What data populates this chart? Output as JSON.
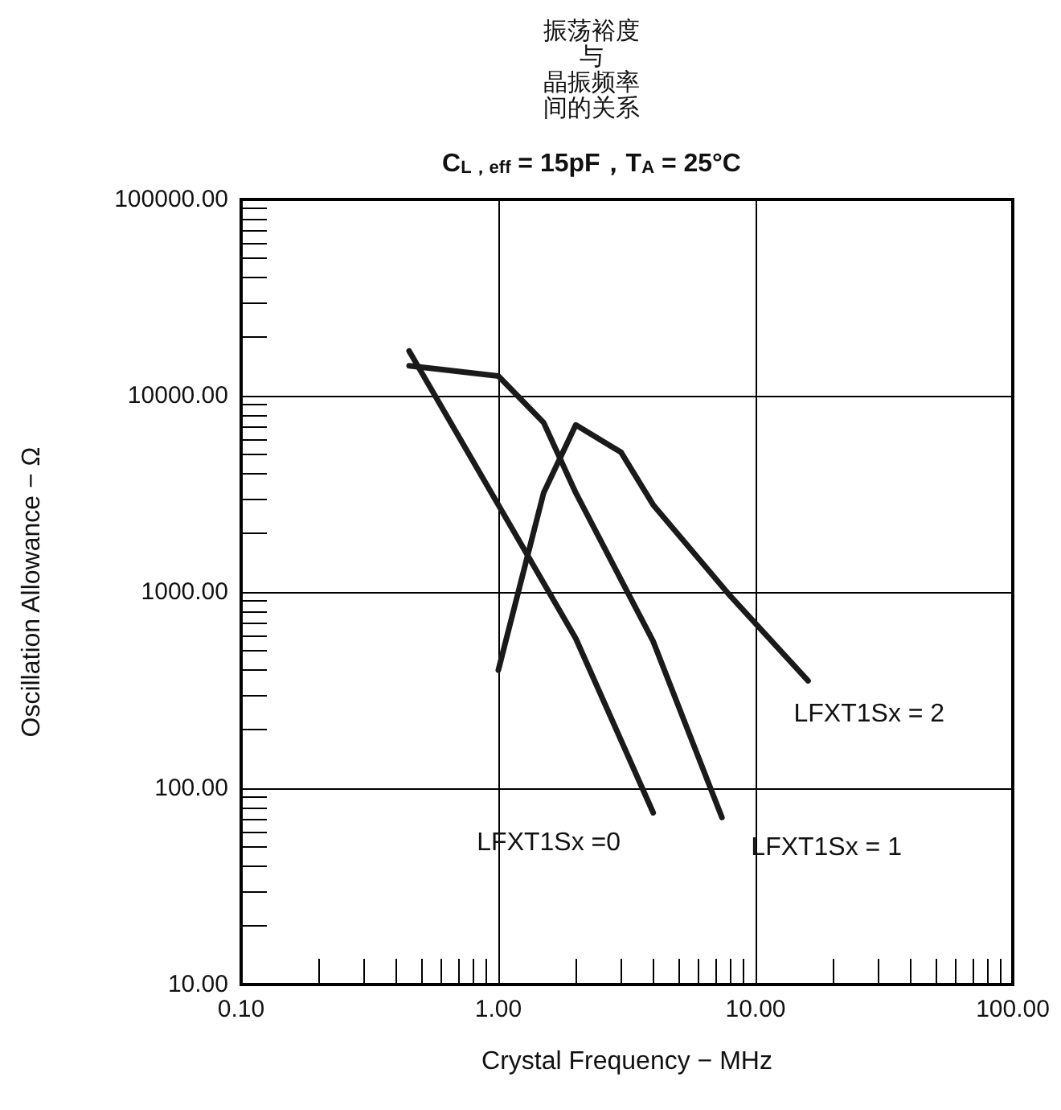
{
  "chart_data": {
    "type": "line",
    "title": "振荡裕度与晶振频率间的关系",
    "subtitle": "C$_{L，eff}$ = 15pF，T$_{A}$ = 25°C",
    "xlabel": "Crystal Frequency − MHz",
    "ylabel": "Oscillation Allowance − Ω",
    "log": "xy",
    "grid": true,
    "legend": false,
    "marker": "none",
    "line_style": "solid",
    "xlim": [
      0.1,
      100
    ],
    "ylim": [
      10,
      100000
    ],
    "xticks": [
      {
        "value": 0.1,
        "label": "0.10"
      },
      {
        "value": 0.2,
        "label": null
      },
      {
        "value": 0.3,
        "label": null
      },
      {
        "value": 0.4,
        "label": null
      },
      {
        "value": 0.5,
        "label": null
      },
      {
        "value": 0.6,
        "label": null
      },
      {
        "value": 0.7,
        "label": null
      },
      {
        "value": 0.8,
        "label": null
      },
      {
        "value": 0.9,
        "label": null
      },
      {
        "value": 1,
        "label": "1.00"
      },
      {
        "value": 2,
        "label": null
      },
      {
        "value": 3,
        "label": null
      },
      {
        "value": 4,
        "label": null
      },
      {
        "value": 5,
        "label": null
      },
      {
        "value": 6,
        "label": null
      },
      {
        "value": 7,
        "label": null
      },
      {
        "value": 8,
        "label": null
      },
      {
        "value": 9,
        "label": null
      },
      {
        "value": 10,
        "label": "10.00"
      },
      {
        "value": 20,
        "label": null
      },
      {
        "value": 30,
        "label": null
      },
      {
        "value": 40,
        "label": null
      },
      {
        "value": 50,
        "label": null
      },
      {
        "value": 60,
        "label": null
      },
      {
        "value": 70,
        "label": null
      },
      {
        "value": 80,
        "label": null
      },
      {
        "value": 90,
        "label": null
      },
      {
        "value": 100,
        "label": "100.00"
      }
    ],
    "yticks": [
      {
        "value": 10,
        "label": "10.00"
      },
      {
        "value": 20,
        "label": null
      },
      {
        "value": 30,
        "label": null
      },
      {
        "value": 40,
        "label": null
      },
      {
        "value": 50,
        "label": null
      },
      {
        "value": 60,
        "label": null
      },
      {
        "value": 70,
        "label": null
      },
      {
        "value": 80,
        "label": null
      },
      {
        "value": 90,
        "label": null
      },
      {
        "value": 100,
        "label": "100.00"
      },
      {
        "value": 200,
        "label": null
      },
      {
        "value": 300,
        "label": null
      },
      {
        "value": 400,
        "label": null
      },
      {
        "value": 500,
        "label": null
      },
      {
        "value": 600,
        "label": null
      },
      {
        "value": 700,
        "label": null
      },
      {
        "value": 800,
        "label": null
      },
      {
        "value": 900,
        "label": null
      },
      {
        "value": 1000,
        "label": "1000.00"
      },
      {
        "value": 2000,
        "label": null
      },
      {
        "value": 3000,
        "label": null
      },
      {
        "value": 4000,
        "label": null
      },
      {
        "value": 5000,
        "label": null
      },
      {
        "value": 6000,
        "label": null
      },
      {
        "value": 7000,
        "label": null
      },
      {
        "value": 8000,
        "label": null
      },
      {
        "value": 9000,
        "label": null
      },
      {
        "value": 10000,
        "label": "10000.00"
      },
      {
        "value": 20000,
        "label": null
      },
      {
        "value": 30000,
        "label": null
      },
      {
        "value": 40000,
        "label": null
      },
      {
        "value": 50000,
        "label": null
      },
      {
        "value": 60000,
        "label": null
      },
      {
        "value": 70000,
        "label": null
      },
      {
        "value": 80000,
        "label": null
      },
      {
        "value": 90000,
        "label": null
      },
      {
        "value": 100000,
        "label": "100000.00"
      }
    ],
    "series": [
      {
        "name": "LFXT1Sx =0",
        "color": "#1a1a1a",
        "x": [
          0.45,
          2,
          4
        ],
        "values": [
          16900,
          580,
          75
        ]
      },
      {
        "name": "LFXT1Sx = 1",
        "color": "#1a1a1a",
        "x": [
          0.45,
          1,
          1.5,
          2,
          4,
          7.4
        ],
        "values": [
          14200,
          12600,
          7300,
          3200,
          560,
          71
        ]
      },
      {
        "name": "LFXT1Sx = 2",
        "color": "#1a1a1a",
        "x": [
          1,
          1.5,
          2,
          3,
          4,
          8,
          16
        ],
        "values": [
          400,
          3200,
          7100,
          5150,
          2780,
          950,
          353
        ]
      }
    ]
  }
}
